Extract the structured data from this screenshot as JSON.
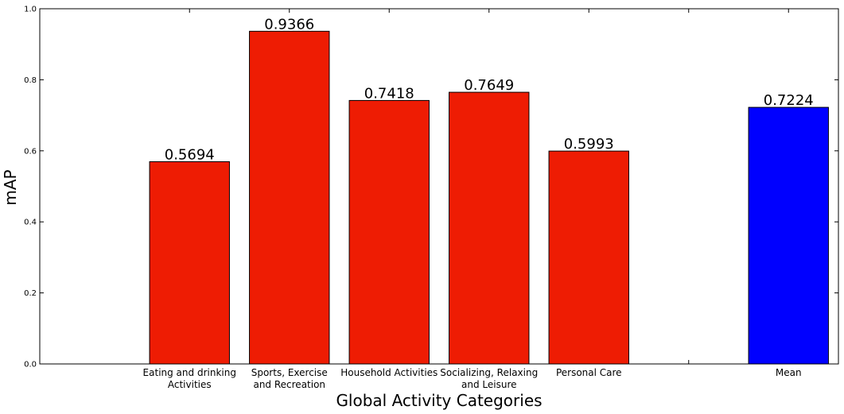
{
  "chart_data": {
    "type": "bar",
    "xlabel": "Global Activity Categories",
    "ylabel": "mAP",
    "ylim": [
      0,
      1.0
    ],
    "yticks": [
      "0.0",
      "0.2",
      "0.4",
      "0.6",
      "0.8",
      "1.0"
    ],
    "grid": false,
    "bars": [
      {
        "label": [
          "Eating and drinking",
          "Activities"
        ],
        "value": 0.5694,
        "value_label": "0.5694",
        "color": "#ee1c03",
        "slot": 1
      },
      {
        "label": [
          "Sports, Exercise",
          "and Recreation"
        ],
        "value": 0.9366,
        "value_label": "0.9366",
        "color": "#ee1c03",
        "slot": 2
      },
      {
        "label": [
          "Household Activities"
        ],
        "value": 0.7418,
        "value_label": "0.7418",
        "color": "#ee1c03",
        "slot": 3
      },
      {
        "label": [
          "Socializing, Relaxing",
          "and Leisure"
        ],
        "value": 0.7649,
        "value_label": "0.7649",
        "color": "#ee1c03",
        "slot": 4
      },
      {
        "label": [
          "Personal Care"
        ],
        "value": 0.5993,
        "value_label": "0.5993",
        "color": "#ee1c03",
        "slot": 5
      },
      {
        "label": [
          "Mean"
        ],
        "value": 0.7224,
        "value_label": "0.7224",
        "color": "#0000ff",
        "slot": 7
      }
    ]
  }
}
